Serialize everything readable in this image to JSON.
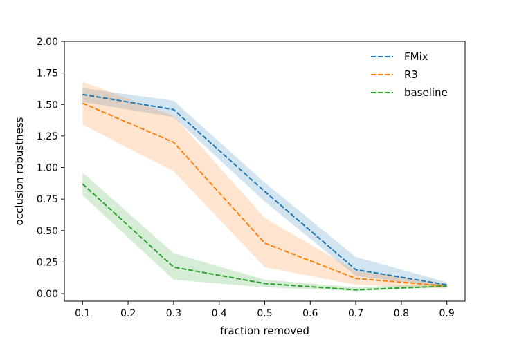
{
  "chart_data": {
    "type": "line",
    "title": "",
    "xlabel": "fraction removed",
    "ylabel": "occlusion robustness",
    "xlim": [
      0.06,
      0.94
    ],
    "ylim": [
      -0.06,
      2.0
    ],
    "xticks": [
      0.1,
      0.2,
      0.3,
      0.4,
      0.5,
      0.6,
      0.7,
      0.8,
      0.9
    ],
    "xtick_labels": [
      "0.1",
      "0.2",
      "0.3",
      "0.4",
      "0.5",
      "0.6",
      "0.7",
      "0.8",
      "0.9"
    ],
    "yticks": [
      0.0,
      0.25,
      0.5,
      0.75,
      1.0,
      1.25,
      1.5,
      1.75,
      2.0
    ],
    "ytick_labels": [
      "0.00",
      "0.25",
      "0.50",
      "0.75",
      "1.00",
      "1.25",
      "1.50",
      "1.75",
      "2.00"
    ],
    "grid": false,
    "legend_position": "top-right",
    "x": [
      0.1,
      0.3,
      0.5,
      0.7,
      0.9
    ],
    "series": [
      {
        "name": "FMix",
        "color": "#1f77b4",
        "values": [
          1.58,
          1.46,
          0.81,
          0.19,
          0.07
        ],
        "lower": [
          1.52,
          1.4,
          0.73,
          0.14,
          0.05
        ],
        "upper": [
          1.63,
          1.53,
          0.88,
          0.29,
          0.09
        ]
      },
      {
        "name": "R3",
        "color": "#ff7f0e",
        "values": [
          1.51,
          1.2,
          0.4,
          0.12,
          0.06
        ],
        "lower": [
          1.34,
          0.97,
          0.21,
          0.07,
          0.04
        ],
        "upper": [
          1.68,
          1.41,
          0.6,
          0.18,
          0.08
        ]
      },
      {
        "name": "baseline",
        "color": "#2ca02c",
        "values": [
          0.87,
          0.21,
          0.08,
          0.03,
          0.06
        ],
        "lower": [
          0.78,
          0.11,
          0.05,
          0.02,
          0.05
        ],
        "upper": [
          0.96,
          0.32,
          0.11,
          0.05,
          0.08
        ]
      }
    ]
  }
}
